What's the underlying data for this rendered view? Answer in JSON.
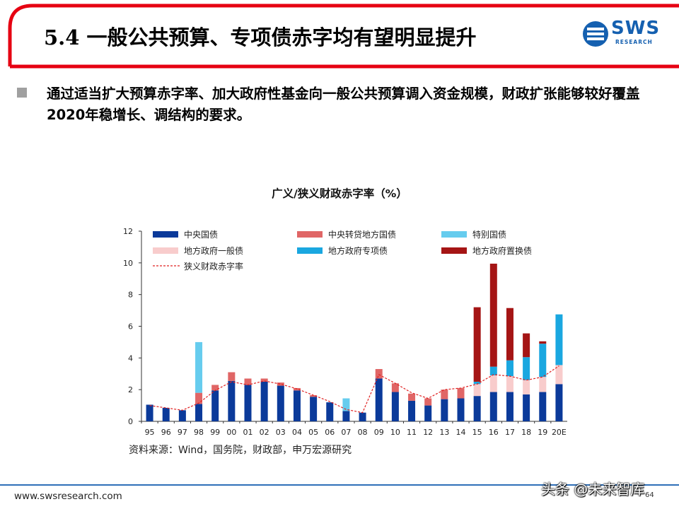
{
  "slide": {
    "title": "5.4 一般公共预算、专项债赤字均有望明显提升",
    "logo_main": "SWS",
    "logo_sub": "RESEARCH",
    "bullet_text": "通过适当扩大预算赤字率、加大政府性基金向一般公共预算调入资金规模，财政扩张能够较好覆盖2020年稳增长、调结构的要求。",
    "source_note": "资料来源：Wind，国务院，财政部，申万宏源研究",
    "footer_url": "www.swsresearch.com",
    "page_number": "64",
    "watermark": "头条 @未来智库"
  },
  "colors": {
    "title_bar": "#e60012",
    "footer_line": "#2f6fb8"
  },
  "chart_data": {
    "type": "bar",
    "stacked": true,
    "title": "广义/狭义财政赤字率（%）",
    "categories": [
      "95",
      "96",
      "97",
      "98",
      "99",
      "00",
      "01",
      "02",
      "03",
      "04",
      "05",
      "06",
      "07",
      "08",
      "09",
      "10",
      "11",
      "12",
      "13",
      "14",
      "15",
      "16",
      "17",
      "18",
      "19",
      "20E"
    ],
    "ylim": [
      0,
      12
    ],
    "yticks": [
      0,
      2,
      4,
      6,
      8,
      10,
      12
    ],
    "grid": false,
    "legend_position": "top",
    "series": [
      {
        "name": "中央国债",
        "color": "#0b3a9a",
        "values": [
          1.05,
          0.85,
          0.7,
          1.1,
          1.95,
          2.55,
          2.3,
          2.5,
          2.25,
          1.95,
          1.55,
          1.2,
          0.65,
          0.55,
          2.7,
          1.85,
          1.3,
          1.0,
          1.4,
          1.45,
          1.6,
          1.85,
          1.85,
          1.7,
          1.85,
          2.35
        ]
      },
      {
        "name": "中央转贷地方国债",
        "color": "#e06666",
        "values": [
          0,
          0,
          0,
          0.7,
          0.35,
          0.55,
          0.4,
          0.2,
          0.2,
          0.15,
          0.1,
          0,
          0,
          0,
          0.6,
          0.55,
          0.45,
          0.45,
          0.6,
          0.65,
          0,
          0,
          0,
          0,
          0,
          0
        ]
      },
      {
        "name": "特别国债",
        "color": "#66ccee",
        "values": [
          0,
          0,
          0,
          3.2,
          0,
          0,
          0,
          0,
          0,
          0,
          0,
          0,
          0.8,
          0,
          0,
          0,
          0,
          0,
          0,
          0,
          0,
          0,
          0,
          0,
          0,
          0
        ]
      },
      {
        "name": "地方政府一般债",
        "color": "#f8cccc",
        "values": [
          0,
          0,
          0,
          0,
          0,
          0,
          0,
          0,
          0,
          0,
          0,
          0,
          0,
          0,
          0,
          0,
          0,
          0,
          0,
          0,
          0.75,
          1.05,
          1.0,
          0.9,
          0.95,
          1.2
        ]
      },
      {
        "name": "地方政府专项债",
        "color": "#1aa7e0",
        "values": [
          0,
          0,
          0,
          0,
          0,
          0,
          0,
          0,
          0,
          0,
          0,
          0,
          0,
          0,
          0,
          0,
          0,
          0,
          0,
          0,
          0.15,
          0.55,
          1.0,
          1.45,
          2.1,
          3.2
        ]
      },
      {
        "name": "地方政府置换债",
        "color": "#a51515",
        "values": [
          0,
          0,
          0,
          0,
          0,
          0,
          0,
          0,
          0,
          0,
          0,
          0,
          0,
          0,
          0,
          0,
          0,
          0,
          0,
          0,
          4.7,
          6.5,
          3.3,
          1.5,
          0.15,
          0
        ]
      }
    ],
    "line_series": {
      "name": "狭义财政赤字率",
      "color": "#e02020",
      "style": "dashed",
      "values": [
        1.0,
        0.85,
        0.7,
        1.15,
        1.95,
        2.5,
        2.3,
        2.55,
        2.35,
        2.05,
        1.65,
        1.25,
        0.75,
        0.55,
        2.95,
        2.4,
        1.8,
        1.45,
        2.0,
        2.1,
        2.35,
        2.95,
        2.85,
        2.6,
        2.8,
        3.5
      ]
    }
  }
}
